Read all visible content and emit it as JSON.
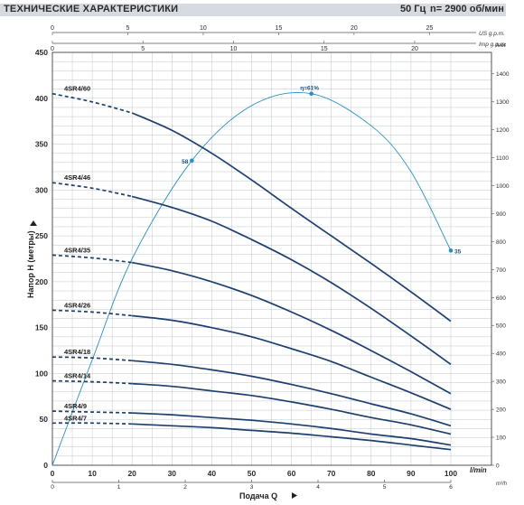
{
  "header": {
    "title": "ТЕХНИЧЕСКИЕ ХАРАКТЕРИСТИКИ",
    "frequency": "50 Гц",
    "speed": "n= 2900 об/мин"
  },
  "colors": {
    "curve": "#1d3f6e",
    "efficiency": "#2a8ec2",
    "grid": "#bfc5ca",
    "header_band": "#d5dbe1",
    "text": "#2a2a2a"
  },
  "chart_data": {
    "type": "line",
    "x_axis": {
      "label": "Подача Q",
      "unit_lmin": "l/min",
      "unit_m3h": "m³/h",
      "range": [
        0,
        100
      ],
      "ticks": [
        0,
        10,
        20,
        30,
        40,
        50,
        60,
        70,
        80,
        90,
        100
      ],
      "tick_labels": [
        "0",
        "10",
        "20",
        "30",
        "40",
        "50",
        "60",
        "70",
        "80",
        "90",
        "100"
      ],
      "m3h_ticks": [
        0,
        1,
        2,
        3,
        4,
        5,
        6
      ],
      "m3h_tick_labels": [
        "0",
        "1",
        "2",
        "3",
        "4",
        "5",
        "6"
      ]
    },
    "top_axes": {
      "us_label": "US g.p.m.",
      "us_ticks": [
        0,
        5,
        10,
        15,
        20,
        25
      ],
      "us_tick_labels": [
        "0",
        "5",
        "10",
        "15",
        "20",
        "25"
      ],
      "imp_label": "Imp g.p.m.",
      "imp_ticks": [
        0,
        5,
        10,
        15,
        20
      ],
      "imp_tick_labels": [
        "0",
        "5",
        "10",
        "15",
        "20"
      ]
    },
    "y_axis": {
      "label": "Напор H (метры)",
      "range": [
        0,
        450
      ],
      "ticks": [
        0,
        50,
        100,
        150,
        200,
        250,
        300,
        350,
        400,
        450
      ],
      "tick_labels": [
        "0",
        "50",
        "100",
        "150",
        "200",
        "250",
        "300",
        "350",
        "400",
        "450"
      ]
    },
    "right_axis": {
      "label": "feet",
      "ticks": [
        0,
        100,
        200,
        300,
        400,
        500,
        600,
        700,
        800,
        900,
        1000,
        1100,
        1200,
        1300,
        1400
      ],
      "tick_labels": [
        "0",
        "100",
        "200",
        "300",
        "400",
        "500",
        "600",
        "700",
        "800",
        "900",
        "1000",
        "1100",
        "1200",
        "1300",
        "1400"
      ]
    },
    "grid": true,
    "dashed_until_x": 20,
    "series": [
      {
        "name": "4SR4/60",
        "x": [
          0,
          10,
          20,
          30,
          40,
          50,
          60,
          70,
          80,
          90,
          100
        ],
        "y": [
          405,
          396,
          384,
          365,
          340,
          311,
          280,
          250,
          220,
          189,
          157
        ]
      },
      {
        "name": "4SR4/46",
        "x": [
          0,
          10,
          20,
          30,
          40,
          50,
          60,
          70,
          80,
          90,
          100
        ],
        "y": [
          308,
          302,
          293,
          281,
          266,
          246,
          224,
          199,
          171,
          141,
          110
        ]
      },
      {
        "name": "4SR4/35",
        "x": [
          0,
          10,
          20,
          30,
          40,
          50,
          60,
          70,
          80,
          90,
          100
        ],
        "y": [
          229,
          226,
          221,
          212,
          200,
          185,
          167,
          147,
          125,
          102,
          78
        ]
      },
      {
        "name": "4SR4/26",
        "x": [
          0,
          10,
          20,
          30,
          40,
          50,
          60,
          70,
          80,
          90,
          100
        ],
        "y": [
          169,
          167,
          163,
          158,
          150,
          140,
          127,
          113,
          96,
          79,
          61
        ]
      },
      {
        "name": "4SR4/18",
        "x": [
          0,
          10,
          20,
          30,
          40,
          50,
          60,
          70,
          80,
          90,
          100
        ],
        "y": [
          118,
          117,
          114,
          110,
          104,
          97,
          88,
          78,
          67,
          56,
          43
        ]
      },
      {
        "name": "4SR4/14",
        "x": [
          0,
          10,
          20,
          30,
          40,
          50,
          60,
          70,
          80,
          90,
          100
        ],
        "y": [
          92,
          91,
          89,
          86,
          81,
          76,
          69,
          61,
          52,
          44,
          34
        ]
      },
      {
        "name": "4SR4/9",
        "x": [
          0,
          10,
          20,
          30,
          40,
          50,
          60,
          70,
          80,
          90,
          100
        ],
        "y": [
          59,
          58,
          57,
          55,
          52,
          49,
          45,
          40,
          34,
          29,
          22
        ]
      },
      {
        "name": "4SR4/7",
        "x": [
          0,
          10,
          20,
          30,
          40,
          50,
          60,
          70,
          80,
          90,
          100
        ],
        "y": [
          46,
          46,
          45,
          43,
          41,
          38,
          35,
          31,
          27,
          22,
          17
        ]
      }
    ],
    "efficiency_curve": {
      "x": [
        0,
        10,
        20,
        35,
        50,
        65,
        80,
        90,
        100
      ],
      "y": [
        0,
        115,
        225,
        332,
        392,
        405,
        370,
        320,
        234
      ]
    },
    "efficiency_points": [
      {
        "label": "58",
        "x": 35,
        "y": 332
      },
      {
        "label": "η=61%",
        "x": 65,
        "y": 405
      },
      {
        "label": "35",
        "x": 100,
        "y": 234
      }
    ]
  }
}
